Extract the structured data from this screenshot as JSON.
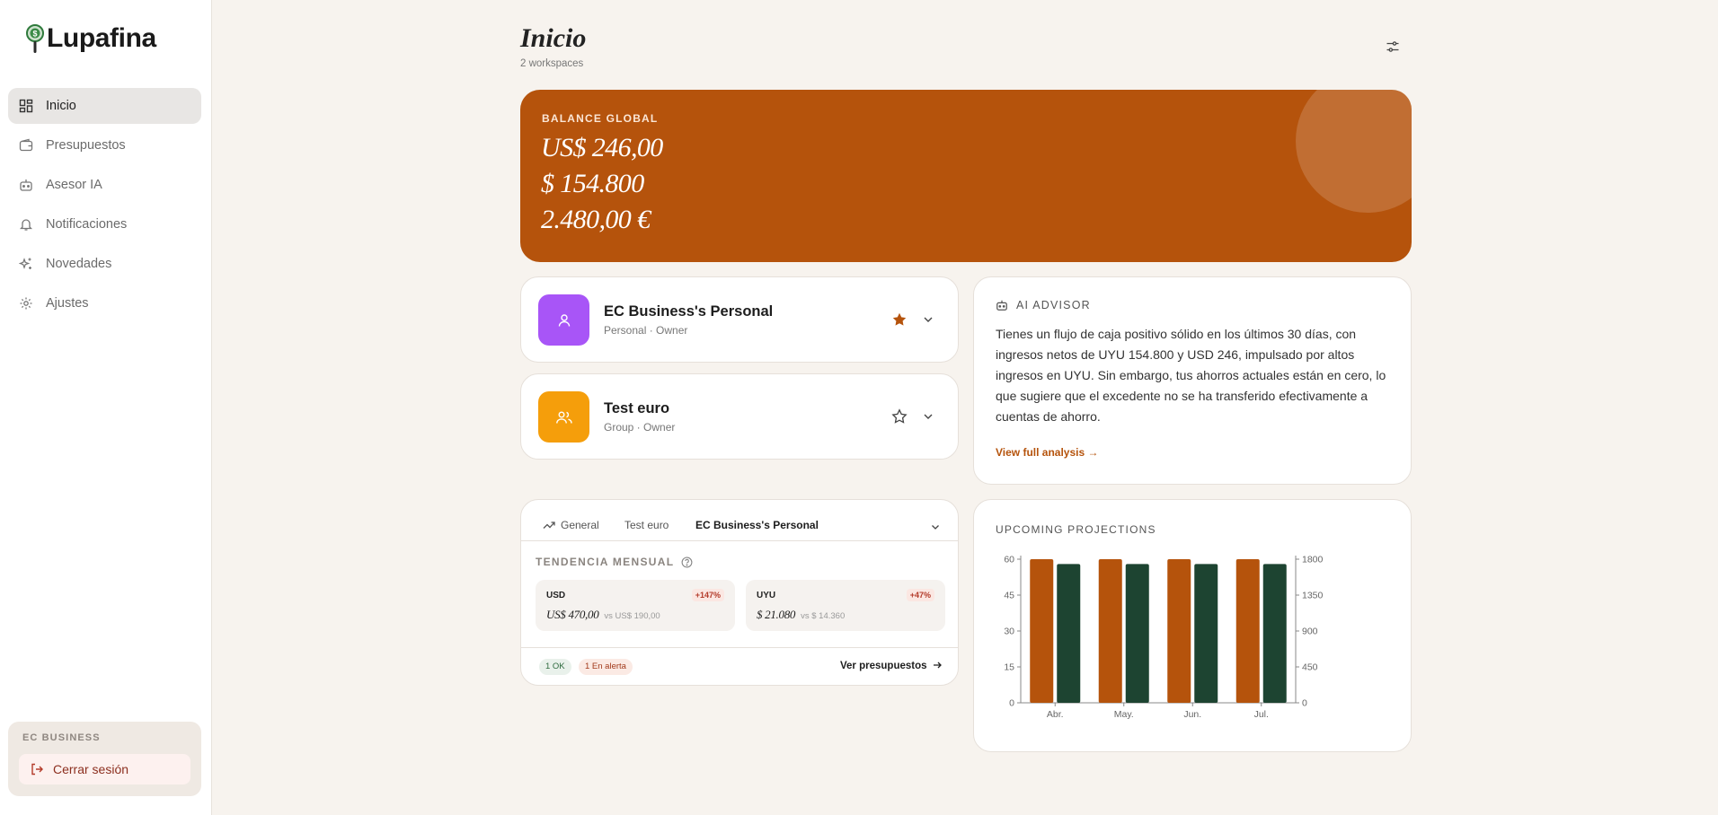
{
  "sidebar": {
    "brand": "Lupafina",
    "items": [
      {
        "label": "Inicio",
        "icon": "grid-icon",
        "active": true
      },
      {
        "label": "Presupuestos",
        "icon": "wallet-icon"
      },
      {
        "label": "Asesor IA",
        "icon": "robot-icon"
      },
      {
        "label": "Notificaciones",
        "icon": "bell-icon"
      },
      {
        "label": "Novedades",
        "icon": "sparkles-icon"
      },
      {
        "label": "Ajustes",
        "icon": "gear-icon"
      }
    ],
    "org_name": "EC BUSINESS",
    "logout_label": "Cerrar sesión"
  },
  "header": {
    "title": "Inicio",
    "subtitle": "2 workspaces"
  },
  "balance": {
    "label": "BALANCE GLOBAL",
    "amounts": [
      "US$ 246,00",
      "$ 154.800",
      "2.480,00 €"
    ]
  },
  "workspaces": [
    {
      "name": "EC Business's Personal",
      "meta": "Personal · Owner",
      "color": "#a855f7",
      "starred": true
    },
    {
      "name": "Test euro",
      "meta": "Group · Owner",
      "color": "#f59e0b",
      "starred": false
    }
  ],
  "advisor": {
    "title": "AI ADVISOR",
    "body": "Tienes un flujo de caja positivo sólido en los últimos 30 días, con ingresos netos de UYU 154.800 y USD 246, impulsado por altos ingresos en UYU. Sin embargo, tus ahorros actuales están en cero, lo que sugiere que el excedente no se ha transferido efectivamente a cuentas de ahorro.",
    "link": "View full analysis →"
  },
  "trend": {
    "tabs": [
      "General",
      "Test euro",
      "EC Business's Personal"
    ],
    "active_tab": 2,
    "label": "TENDENCIA MENSUAL",
    "currencies": [
      {
        "code": "USD",
        "badge": "+147%",
        "value": "US$ 470,00",
        "vs": "vs US$ 190,00"
      },
      {
        "code": "UYU",
        "badge": "+47%",
        "value": "$ 21.080",
        "vs": "vs $ 14.360"
      }
    ],
    "ok_label": "1 OK",
    "alert_label": "1 En alerta",
    "link": "Ver presupuestos"
  },
  "projections": {
    "title": "UPCOMING PROJECTIONS"
  },
  "chart_data": {
    "type": "bar",
    "title": "UPCOMING PROJECTIONS",
    "categories": [
      "Abr.",
      "May.",
      "Jun.",
      "Jul."
    ],
    "series": [
      {
        "axis": "left",
        "color": "#b5530c",
        "values": [
          60,
          60,
          60,
          60
        ]
      },
      {
        "axis": "right",
        "color": "#1d4431",
        "values": [
          1740,
          1740,
          1740,
          1740
        ]
      }
    ],
    "ylim_left": [
      0,
      60
    ],
    "yticks_left": [
      0,
      15,
      30,
      45,
      60
    ],
    "ylim_right": [
      0,
      1800
    ],
    "yticks_right": [
      0,
      450,
      900,
      1350,
      1800
    ],
    "grid": false
  },
  "colors": {
    "accent": "#b5530c",
    "dark_green": "#1d4431",
    "background": "#f7f3ee"
  }
}
